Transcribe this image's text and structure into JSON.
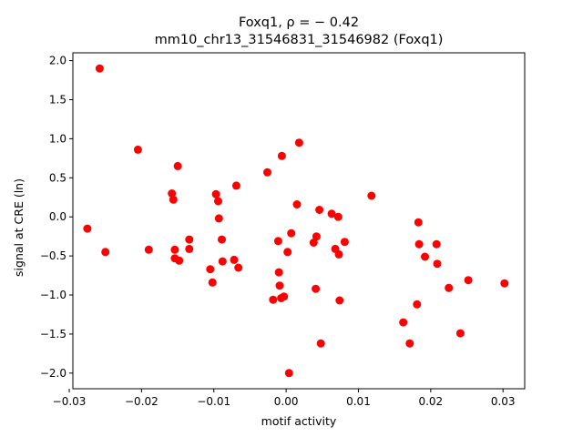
{
  "chart_data": {
    "type": "scatter",
    "title_line1": "Foxq1, ρ = − 0.42",
    "title_line2": "mm10_chr13_31546831_31546982 (Foxq1)",
    "xlabel": "motif activity",
    "ylabel": "signal at CRE (ln)",
    "xlim": [
      -0.0295,
      0.033
    ],
    "ylim": [
      -2.2,
      2.1
    ],
    "xticks": [
      -0.03,
      -0.02,
      -0.01,
      0.0,
      0.01,
      0.02,
      0.03
    ],
    "xtick_labels": [
      "−0.03",
      "−0.02",
      "−0.01",
      "0.00",
      "0.01",
      "0.02",
      "0.03"
    ],
    "yticks": [
      -2.0,
      -1.5,
      -1.0,
      -0.5,
      0.0,
      0.5,
      1.0,
      1.5,
      2.0
    ],
    "ytick_labels": [
      "−2.0",
      "−1.5",
      "−1.0",
      "−0.5",
      "0.0",
      "0.5",
      "1.0",
      "1.5",
      "2.0"
    ],
    "grid": false,
    "marker_color": "#ff0000",
    "points": [
      {
        "x": -0.0275,
        "y": -0.15
      },
      {
        "x": -0.0258,
        "y": 1.9
      },
      {
        "x": -0.025,
        "y": -0.45
      },
      {
        "x": -0.0205,
        "y": 0.86
      },
      {
        "x": -0.019,
        "y": -0.42
      },
      {
        "x": -0.0158,
        "y": 0.3
      },
      {
        "x": -0.0156,
        "y": 0.22
      },
      {
        "x": -0.0154,
        "y": -0.42
      },
      {
        "x": -0.0154,
        "y": -0.53
      },
      {
        "x": -0.015,
        "y": 0.65
      },
      {
        "x": -0.0148,
        "y": -0.56
      },
      {
        "x": -0.0134,
        "y": -0.29
      },
      {
        "x": -0.0134,
        "y": -0.41
      },
      {
        "x": -0.0105,
        "y": -0.67
      },
      {
        "x": -0.0102,
        "y": -0.84
      },
      {
        "x": -0.0097,
        "y": 0.29
      },
      {
        "x": -0.0094,
        "y": 0.2
      },
      {
        "x": -0.0093,
        "y": -0.02
      },
      {
        "x": -0.0089,
        "y": -0.29
      },
      {
        "x": -0.0088,
        "y": -0.57
      },
      {
        "x": -0.0072,
        "y": -0.55
      },
      {
        "x": -0.0069,
        "y": 0.4
      },
      {
        "x": -0.0066,
        "y": -0.65
      },
      {
        "x": -0.0026,
        "y": 0.57
      },
      {
        "x": -0.0018,
        "y": -1.06
      },
      {
        "x": -0.0011,
        "y": -0.31
      },
      {
        "x": -0.001,
        "y": -0.71
      },
      {
        "x": -0.0009,
        "y": -0.88
      },
      {
        "x": -0.0007,
        "y": -1.04
      },
      {
        "x": -0.0006,
        "y": 0.78
      },
      {
        "x": -0.0003,
        "y": -1.02
      },
      {
        "x": 0.0002,
        "y": -0.45
      },
      {
        "x": 0.0004,
        "y": -2.0
      },
      {
        "x": 0.0007,
        "y": -0.21
      },
      {
        "x": 0.0015,
        "y": 0.16
      },
      {
        "x": 0.0018,
        "y": 0.95
      },
      {
        "x": 0.0038,
        "y": -0.33
      },
      {
        "x": 0.0041,
        "y": -0.92
      },
      {
        "x": 0.0042,
        "y": -0.25
      },
      {
        "x": 0.0046,
        "y": 0.09
      },
      {
        "x": 0.0048,
        "y": -1.62
      },
      {
        "x": 0.0063,
        "y": 0.04
      },
      {
        "x": 0.0068,
        "y": -0.41
      },
      {
        "x": 0.0072,
        "y": 0.0
      },
      {
        "x": 0.0073,
        "y": -0.48
      },
      {
        "x": 0.0074,
        "y": -1.07
      },
      {
        "x": 0.0081,
        "y": -0.32
      },
      {
        "x": 0.0118,
        "y": 0.27
      },
      {
        "x": 0.0162,
        "y": -1.35
      },
      {
        "x": 0.0171,
        "y": -1.62
      },
      {
        "x": 0.0181,
        "y": -1.12
      },
      {
        "x": 0.0183,
        "y": -0.07
      },
      {
        "x": 0.0184,
        "y": -0.35
      },
      {
        "x": 0.0192,
        "y": -0.51
      },
      {
        "x": 0.0208,
        "y": -0.35
      },
      {
        "x": 0.0209,
        "y": -0.6
      },
      {
        "x": 0.0225,
        "y": -0.91
      },
      {
        "x": 0.0241,
        "y": -1.49
      },
      {
        "x": 0.0252,
        "y": -0.81
      },
      {
        "x": 0.0302,
        "y": -0.85
      }
    ]
  }
}
